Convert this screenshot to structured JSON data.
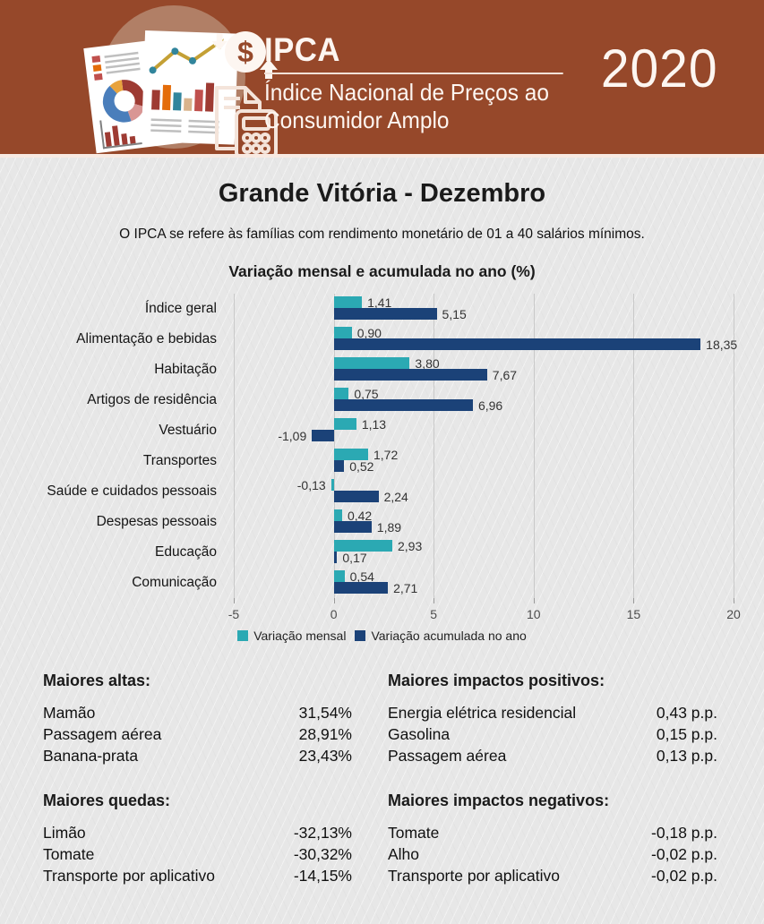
{
  "header": {
    "title": "IPCA",
    "subtitle_line1": "Índice Nacional de Preços ao",
    "subtitle_line2": "Consumidor Amplo",
    "year": "2020",
    "colors": {
      "background": "#96482a",
      "circle": "#b17f66",
      "text": "#fdf6f1"
    }
  },
  "main": {
    "title": "Grande Vitória - Dezembro",
    "description": "O IPCA se refere às famílias com rendimento monetário de 01 a 40 salários mínimos."
  },
  "chart_data": {
    "type": "bar",
    "orientation": "horizontal",
    "title": "Variação mensal e acumulada no ano (%)",
    "categories": [
      "Índice geral",
      "Alimentação e bebidas",
      "Habitação",
      "Artigos de residência",
      "Vestuário",
      "Transportes",
      "Saúde e cuidados pessoais",
      "Despesas pessoais",
      "Educação",
      "Comunicação"
    ],
    "series": [
      {
        "name": "Variação mensal",
        "color": "#2ba9b3",
        "values": [
          1.41,
          0.9,
          3.8,
          0.75,
          1.13,
          1.72,
          -0.13,
          0.42,
          2.93,
          0.54
        ],
        "labels": [
          "1,41",
          "0,90",
          "3,80",
          "0,75",
          "1,13",
          "1,72",
          "-0,13",
          "0,42",
          "2,93",
          "0,54"
        ]
      },
      {
        "name": "Variação acumulada no ano",
        "color": "#1b4278",
        "values": [
          5.15,
          18.35,
          7.67,
          6.96,
          -1.09,
          0.52,
          2.24,
          1.89,
          0.17,
          2.71
        ],
        "labels": [
          "5,15",
          "18,35",
          "7,67",
          "6,96",
          "-1,09",
          "0,52",
          "2,24",
          "1,89",
          "0,17",
          "2,71"
        ]
      }
    ],
    "xlim": [
      -5,
      20
    ],
    "xticks": [
      -5,
      0,
      5,
      10,
      15,
      20
    ],
    "xtick_labels": [
      "-5",
      "0",
      "5",
      "10",
      "15",
      "20"
    ],
    "grid": true,
    "legend_position": "bottom"
  },
  "sections": {
    "highs": {
      "heading": "Maiores altas:",
      "items": [
        {
          "label": "Mamão",
          "value": "31,54%"
        },
        {
          "label": "Passagem aérea",
          "value": "28,91%"
        },
        {
          "label": "Banana-prata",
          "value": "23,43%"
        }
      ]
    },
    "positive_impacts": {
      "heading": "Maiores impactos positivos:",
      "items": [
        {
          "label": "Energia elétrica residencial",
          "value": "0,43 p.p."
        },
        {
          "label": "Gasolina",
          "value": "0,15 p.p."
        },
        {
          "label": "Passagem aérea",
          "value": "0,13 p.p."
        }
      ]
    },
    "lows": {
      "heading": "Maiores quedas:",
      "items": [
        {
          "label": "Limão",
          "value": "-32,13%"
        },
        {
          "label": "Tomate",
          "value": "-30,32%"
        },
        {
          "label": "Transporte por aplicativo",
          "value": "-14,15%"
        }
      ]
    },
    "negative_impacts": {
      "heading": "Maiores impactos negativos:",
      "items": [
        {
          "label": "Tomate",
          "value": "-0,18 p.p."
        },
        {
          "label": "Alho",
          "value": "-0,02 p.p."
        },
        {
          "label": "Transporte por aplicativo",
          "value": "-0,02 p.p."
        }
      ]
    }
  }
}
